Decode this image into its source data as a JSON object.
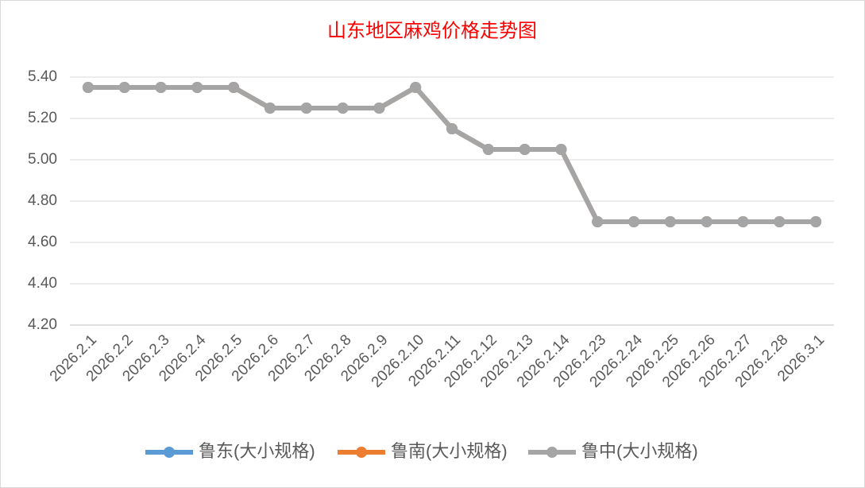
{
  "chart_data": {
    "type": "line",
    "title": "山东地区麻鸡价格走势图",
    "categories": [
      "2026.2.1",
      "2026.2.2",
      "2026.2.3",
      "2026.2.4",
      "2026.2.5",
      "2026.2.6",
      "2026.2.7",
      "2026.2.8",
      "2026.2.9",
      "2026.2.10",
      "2026.2.11",
      "2026.2.12",
      "2026.2.13",
      "2026.2.14",
      "2026.2.23",
      "2026.2.24",
      "2026.2.25",
      "2026.2.26",
      "2026.2.27",
      "2026.2.28",
      "2026.3.1"
    ],
    "series": [
      {
        "name": "鲁东(大小规格)",
        "color": "#5b9bd5",
        "values": [
          5.35,
          5.35,
          5.35,
          5.35,
          5.35,
          5.25,
          5.25,
          5.25,
          5.25,
          5.35,
          5.15,
          5.05,
          5.05,
          5.05,
          4.7,
          4.7,
          4.7,
          4.7,
          4.7,
          4.7,
          4.7
        ]
      },
      {
        "name": "鲁南(大小规格)",
        "color": "#ed7d31",
        "values": [
          5.35,
          5.35,
          5.35,
          5.35,
          5.35,
          5.25,
          5.25,
          5.25,
          5.25,
          5.35,
          5.15,
          5.05,
          5.05,
          5.05,
          4.7,
          4.7,
          4.7,
          4.7,
          4.7,
          4.7,
          4.7
        ]
      },
      {
        "name": "鲁中(大小规格)",
        "color": "#a5a5a5",
        "values": [
          5.35,
          5.35,
          5.35,
          5.35,
          5.35,
          5.25,
          5.25,
          5.25,
          5.25,
          5.35,
          5.15,
          5.05,
          5.05,
          5.05,
          4.7,
          4.7,
          4.7,
          4.7,
          4.7,
          4.7,
          4.7
        ]
      }
    ],
    "ylim": [
      4.2,
      5.4
    ],
    "yticks": [
      {
        "value": 4.2,
        "label": "4.20"
      },
      {
        "value": 4.4,
        "label": "4.40"
      },
      {
        "value": 4.6,
        "label": "4.60"
      },
      {
        "value": 4.8,
        "label": "4.80"
      },
      {
        "value": 5.0,
        "label": "5.00"
      },
      {
        "value": 5.2,
        "label": "5.20"
      },
      {
        "value": 5.4,
        "label": "5.40"
      }
    ],
    "grid": true,
    "legend": "bottom"
  }
}
